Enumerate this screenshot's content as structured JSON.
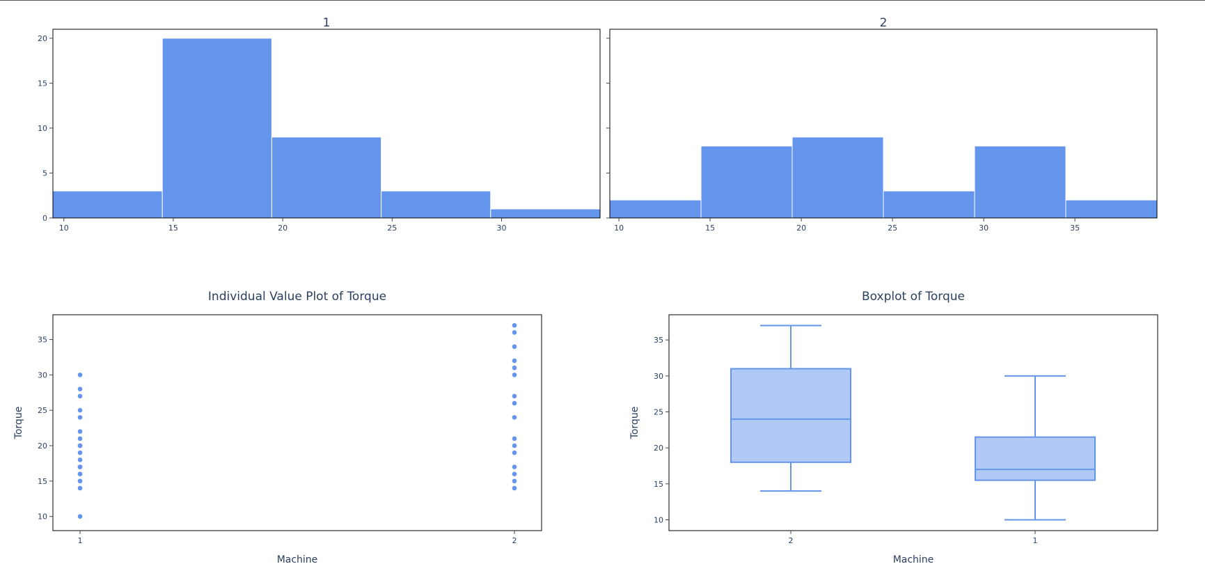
{
  "colors": {
    "accent": "#6495ed",
    "box_fill": "#b1c9f5",
    "frame": "#000000",
    "text": "#2a3f5f"
  },
  "chart_data": [
    {
      "type": "bar",
      "title": "1",
      "bin_edges": [
        9.5,
        14.5,
        19.5,
        24.5,
        29.5,
        34.5
      ],
      "values": [
        3,
        20,
        9,
        3,
        1
      ],
      "xlim": [
        9.5,
        34.5
      ],
      "ylim": [
        0,
        21
      ],
      "x_ticks": [
        10,
        15,
        20,
        25,
        30
      ],
      "y_ticks": [
        0,
        5,
        10,
        15,
        20
      ]
    },
    {
      "type": "bar",
      "title": "2",
      "bin_edges": [
        9.5,
        14.5,
        19.5,
        24.5,
        29.5,
        34.5,
        39.5
      ],
      "values": [
        2,
        8,
        9,
        3,
        8,
        2
      ],
      "xlim": [
        9.5,
        39.5
      ],
      "ylim": [
        0,
        21
      ],
      "x_ticks": [
        10,
        15,
        20,
        25,
        30,
        35
      ],
      "y_ticks": [
        0,
        5,
        10,
        15,
        20
      ]
    },
    {
      "type": "scatter",
      "title": "Individual Value Plot of Torque",
      "xlabel": "Machine",
      "ylabel": "Torque",
      "categories": [
        "1",
        "2"
      ],
      "series": [
        {
          "category": "1",
          "values": [
            10,
            14,
            15,
            15,
            16,
            16,
            17,
            17,
            18,
            19,
            20,
            20,
            21,
            22,
            24,
            25,
            27,
            28,
            30
          ]
        },
        {
          "category": "2",
          "values": [
            14,
            15,
            16,
            17,
            19,
            20,
            21,
            24,
            26,
            27,
            30,
            31,
            32,
            34,
            36,
            37
          ]
        }
      ],
      "ylim": [
        8,
        38.5
      ],
      "y_ticks": [
        10,
        15,
        20,
        25,
        30,
        35
      ]
    },
    {
      "type": "box",
      "title": "Boxplot of Torque",
      "xlabel": "Machine",
      "ylabel": "Torque",
      "categories": [
        "2",
        "1"
      ],
      "boxes": [
        {
          "category": "2",
          "min": 14,
          "q1": 18,
          "median": 24,
          "q3": 31,
          "max": 37
        },
        {
          "category": "1",
          "min": 10,
          "q1": 15.5,
          "median": 17,
          "q3": 21.5,
          "max": 30
        }
      ],
      "ylim": [
        8.5,
        38.5
      ],
      "y_ticks": [
        10,
        15,
        20,
        25,
        30,
        35
      ]
    }
  ]
}
